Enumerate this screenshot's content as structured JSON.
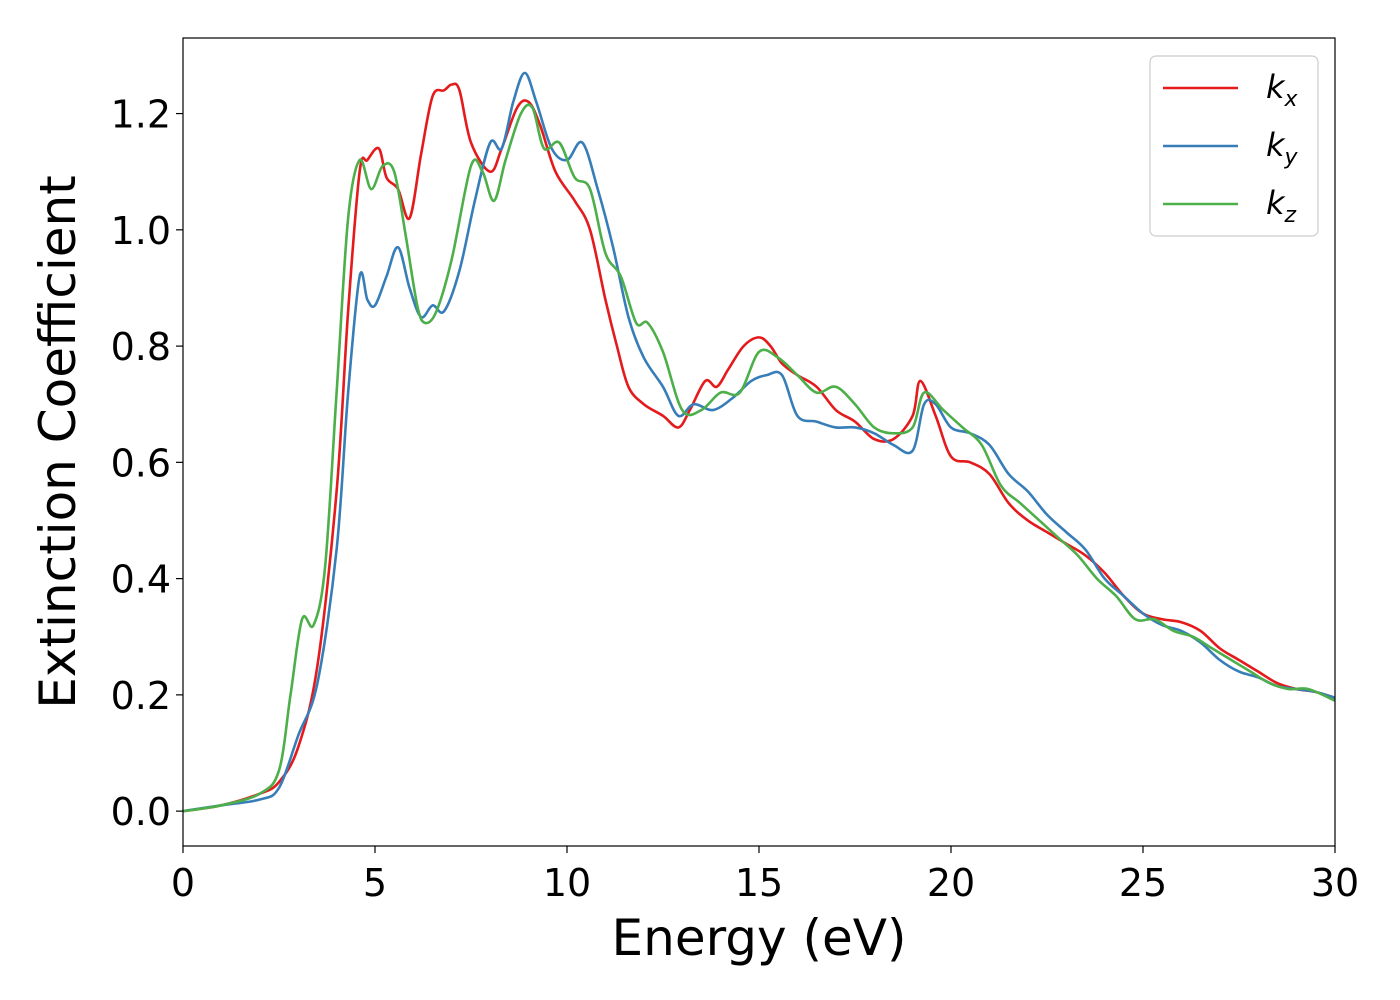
{
  "chart_data": {
    "type": "line",
    "xlabel": "Energy (eV)",
    "ylabel": "Extinction Coefficient",
    "xlim": [
      0,
      30
    ],
    "ylim": [
      -0.06,
      1.33
    ],
    "xticks": [
      "0",
      "5",
      "10",
      "15",
      "20",
      "25",
      "30"
    ],
    "yticks": [
      "0.0",
      "0.2",
      "0.4",
      "0.6",
      "0.8",
      "1.0",
      "1.2"
    ],
    "legend_position": "top-right",
    "grid": false,
    "series": [
      {
        "name": "k_x",
        "label_main": "k",
        "label_sub": "x",
        "color": "#e41a1c",
        "x": [
          0,
          1,
          2,
          2.5,
          3,
          3.5,
          4,
          4.3,
          4.6,
          4.8,
          5.1,
          5.3,
          5.6,
          5.9,
          6.2,
          6.5,
          6.8,
          7.0,
          7.2,
          7.5,
          8.0,
          8.3,
          8.7,
          9.0,
          9.3,
          9.7,
          10.2,
          10.6,
          11.0,
          11.3,
          11.6,
          12.0,
          12.5,
          12.9,
          13.2,
          13.6,
          13.9,
          14.2,
          14.6,
          15.0,
          15.3,
          15.6,
          16.0,
          16.5,
          17.0,
          17.5,
          18.0,
          18.5,
          19.0,
          19.2,
          19.6,
          20.0,
          20.5,
          21.0,
          21.5,
          22.0,
          22.5,
          23.0,
          23.5,
          24.0,
          24.5,
          25.0,
          25.5,
          26.0,
          26.5,
          27.0,
          27.5,
          28.0,
          28.5,
          29.0,
          29.5,
          30.0
        ],
        "values": [
          0.0,
          0.01,
          0.03,
          0.05,
          0.11,
          0.25,
          0.55,
          0.86,
          1.1,
          1.12,
          1.14,
          1.09,
          1.07,
          1.02,
          1.13,
          1.23,
          1.24,
          1.25,
          1.24,
          1.15,
          1.1,
          1.14,
          1.21,
          1.22,
          1.18,
          1.1,
          1.05,
          1.0,
          0.88,
          0.8,
          0.73,
          0.7,
          0.68,
          0.66,
          0.69,
          0.74,
          0.73,
          0.76,
          0.8,
          0.815,
          0.8,
          0.77,
          0.75,
          0.73,
          0.69,
          0.67,
          0.64,
          0.64,
          0.68,
          0.74,
          0.68,
          0.61,
          0.6,
          0.58,
          0.53,
          0.5,
          0.48,
          0.46,
          0.44,
          0.41,
          0.37,
          0.34,
          0.33,
          0.325,
          0.31,
          0.28,
          0.26,
          0.24,
          0.22,
          0.21,
          0.205,
          0.195
        ]
      },
      {
        "name": "k_y",
        "label_main": "k",
        "label_sub": "y",
        "color": "#377eb8",
        "x": [
          0,
          1,
          2,
          2.5,
          3,
          3.5,
          4,
          4.3,
          4.6,
          4.8,
          5.0,
          5.3,
          5.6,
          5.9,
          6.2,
          6.5,
          6.8,
          7.2,
          7.6,
          8.0,
          8.3,
          8.6,
          8.9,
          9.2,
          9.6,
          10.0,
          10.4,
          10.8,
          11.2,
          11.6,
          12.0,
          12.5,
          12.9,
          13.3,
          13.8,
          14.3,
          14.8,
          15.2,
          15.6,
          16.0,
          16.5,
          17.0,
          17.5,
          18.0,
          18.5,
          19.0,
          19.3,
          19.6,
          20.0,
          20.5,
          21.0,
          21.5,
          22.0,
          22.5,
          23.0,
          23.5,
          24.0,
          24.5,
          25.0,
          25.5,
          26.0,
          26.5,
          27.0,
          27.5,
          28.0,
          28.5,
          29.0,
          29.5,
          30.0
        ],
        "values": [
          0.0,
          0.01,
          0.02,
          0.04,
          0.13,
          0.22,
          0.45,
          0.72,
          0.92,
          0.88,
          0.87,
          0.92,
          0.97,
          0.9,
          0.85,
          0.87,
          0.86,
          0.93,
          1.05,
          1.15,
          1.14,
          1.22,
          1.27,
          1.22,
          1.14,
          1.12,
          1.15,
          1.07,
          0.97,
          0.85,
          0.78,
          0.73,
          0.68,
          0.7,
          0.69,
          0.71,
          0.74,
          0.75,
          0.75,
          0.68,
          0.67,
          0.66,
          0.66,
          0.65,
          0.63,
          0.62,
          0.7,
          0.7,
          0.66,
          0.65,
          0.63,
          0.58,
          0.55,
          0.51,
          0.48,
          0.45,
          0.4,
          0.37,
          0.34,
          0.32,
          0.31,
          0.29,
          0.26,
          0.24,
          0.23,
          0.215,
          0.21,
          0.205,
          0.195
        ]
      },
      {
        "name": "k_z",
        "label_main": "k",
        "label_sub": "z",
        "color": "#4daf4a",
        "x": [
          0,
          1,
          2,
          2.5,
          2.8,
          3.1,
          3.4,
          3.7,
          4.0,
          4.3,
          4.6,
          4.9,
          5.2,
          5.5,
          5.8,
          6.1,
          6.3,
          6.6,
          7.0,
          7.5,
          7.8,
          8.1,
          8.4,
          8.8,
          9.1,
          9.4,
          9.8,
          10.2,
          10.6,
          11.0,
          11.4,
          11.8,
          12.1,
          12.5,
          13.0,
          13.5,
          14.0,
          14.5,
          15.0,
          15.5,
          16.0,
          16.5,
          17.0,
          17.5,
          18.0,
          18.5,
          19.0,
          19.3,
          19.8,
          20.3,
          20.8,
          21.3,
          21.8,
          22.3,
          22.8,
          23.3,
          23.8,
          24.3,
          24.8,
          25.3,
          25.8,
          26.3,
          26.8,
          27.3,
          27.8,
          28.3,
          28.8,
          29.3,
          30.0
        ],
        "values": [
          0.0,
          0.01,
          0.03,
          0.07,
          0.2,
          0.33,
          0.32,
          0.42,
          0.72,
          1.02,
          1.12,
          1.07,
          1.11,
          1.1,
          0.99,
          0.87,
          0.84,
          0.86,
          0.95,
          1.11,
          1.1,
          1.05,
          1.12,
          1.2,
          1.21,
          1.14,
          1.15,
          1.09,
          1.07,
          0.96,
          0.92,
          0.84,
          0.84,
          0.79,
          0.69,
          0.69,
          0.72,
          0.72,
          0.79,
          0.78,
          0.75,
          0.72,
          0.73,
          0.7,
          0.66,
          0.65,
          0.66,
          0.72,
          0.69,
          0.66,
          0.63,
          0.56,
          0.53,
          0.5,
          0.47,
          0.44,
          0.4,
          0.37,
          0.33,
          0.33,
          0.31,
          0.3,
          0.28,
          0.26,
          0.24,
          0.22,
          0.21,
          0.21,
          0.19
        ]
      }
    ]
  }
}
